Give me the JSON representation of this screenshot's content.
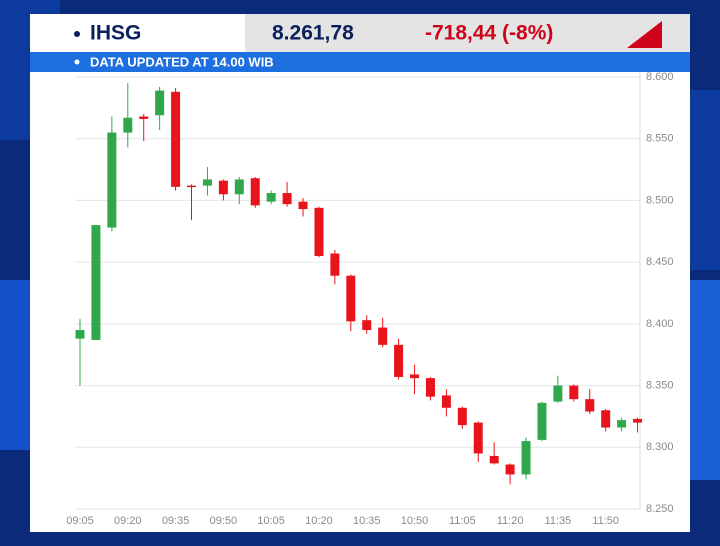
{
  "header": {
    "ticker": "IHSG",
    "price": "8.261,78",
    "change": "-718,44 (-8%)",
    "subtitle": "DATA UPDATED AT 14.00 WIB"
  },
  "chart_data": {
    "type": "candlestick",
    "categories": [
      "09:05",
      null,
      null,
      "09:20",
      null,
      null,
      "09:35",
      null,
      null,
      "09:50",
      null,
      null,
      "10:05",
      null,
      null,
      "10:20",
      null,
      null,
      "10:35",
      null,
      null,
      "10:50",
      null,
      null,
      "11:05",
      null,
      null,
      "11:20",
      null,
      null,
      "11:35",
      null,
      null,
      "11:50",
      null,
      null
    ],
    "open": [
      8388,
      8387,
      8478,
      8555,
      8568,
      8569,
      8588,
      8512,
      8512,
      8516,
      8505,
      8518,
      8499,
      8506,
      8499,
      8494,
      8457,
      8439,
      8403,
      8397,
      8383,
      8359,
      8356,
      8342,
      8332,
      8320,
      8293,
      8286,
      8278,
      8306,
      8337,
      8350,
      8339,
      8330,
      8316,
      8323
    ],
    "high": [
      8404,
      8480,
      8568,
      8595,
      8570,
      8592,
      8591,
      8513,
      8527,
      8517,
      8519,
      8519,
      8508,
      8515,
      8502,
      8495,
      8460,
      8440,
      8407,
      8405,
      8388,
      8367,
      8357,
      8347,
      8333,
      8321,
      8304,
      8287,
      8308,
      8337,
      8358,
      8351,
      8347,
      8331,
      8324,
      8324
    ],
    "low": [
      8350,
      8387,
      8475,
      8543,
      8548,
      8557,
      8508,
      8484,
      8504,
      8500,
      8497,
      8494,
      8497,
      8495,
      8487,
      8454,
      8432,
      8394,
      8392,
      8381,
      8355,
      8343,
      8338,
      8325,
      8315,
      8288,
      8286,
      8270,
      8274,
      8305,
      8336,
      8337,
      8327,
      8313,
      8313,
      8312
    ],
    "close": [
      8395,
      8480,
      8555,
      8567,
      8566,
      8589,
      8511,
      8511,
      8517,
      8505,
      8517,
      8496,
      8506,
      8497,
      8493,
      8455,
      8439,
      8402,
      8395,
      8383,
      8357,
      8356,
      8341,
      8332,
      8318,
      8295,
      8287,
      8278,
      8305,
      8336,
      8350,
      8339,
      8329,
      8316,
      8322,
      8320
    ],
    "up_color": "#2ea84a",
    "down_color": "#e8141c",
    "ylim": [
      8250,
      8600
    ],
    "yticks": [
      {
        "value": 8250,
        "label": "8.250"
      },
      {
        "value": 8300,
        "label": "8.300"
      },
      {
        "value": 8350,
        "label": "8.350"
      },
      {
        "value": 8400,
        "label": "8.400"
      },
      {
        "value": 8450,
        "label": "8.450"
      },
      {
        "value": 8500,
        "label": "8.500"
      },
      {
        "value": 8550,
        "label": "8.550"
      },
      {
        "value": 8600,
        "label": "8.600"
      }
    ],
    "grid": true
  }
}
